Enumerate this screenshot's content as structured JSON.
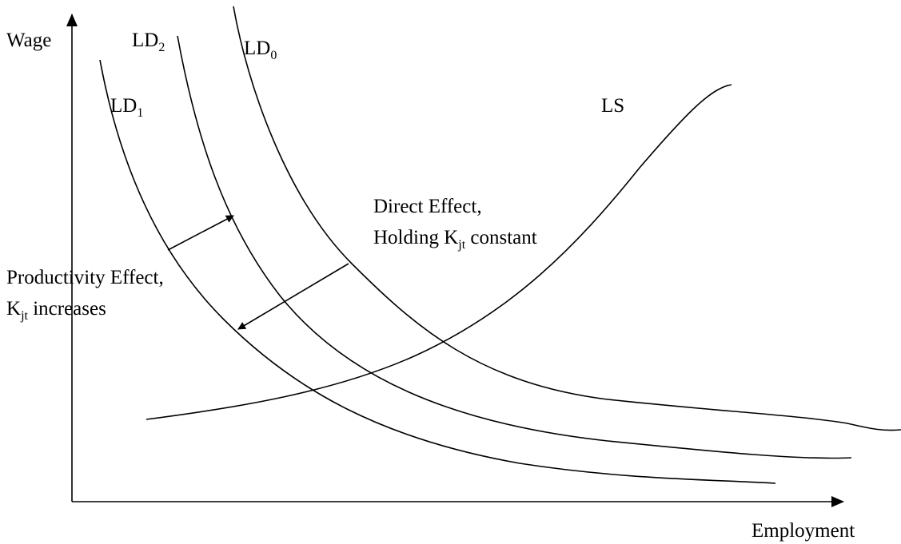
{
  "axes": {
    "y_label": "Wage",
    "x_label": "Employment"
  },
  "curves": [
    {
      "name": "LD",
      "subscript": "0"
    },
    {
      "name": "LD",
      "subscript": "2"
    },
    {
      "name": "LD",
      "subscript": "1"
    },
    {
      "name": "LS"
    }
  ],
  "annotations": [
    {
      "line1": "Direct Effect,",
      "line2": {
        "before": "Holding K",
        "sub": "jt",
        "after": " constant"
      }
    },
    {
      "line1": "Productivity Effect,",
      "line2": {
        "before": "K",
        "sub": "jt",
        "after": " increases"
      }
    }
  ]
}
